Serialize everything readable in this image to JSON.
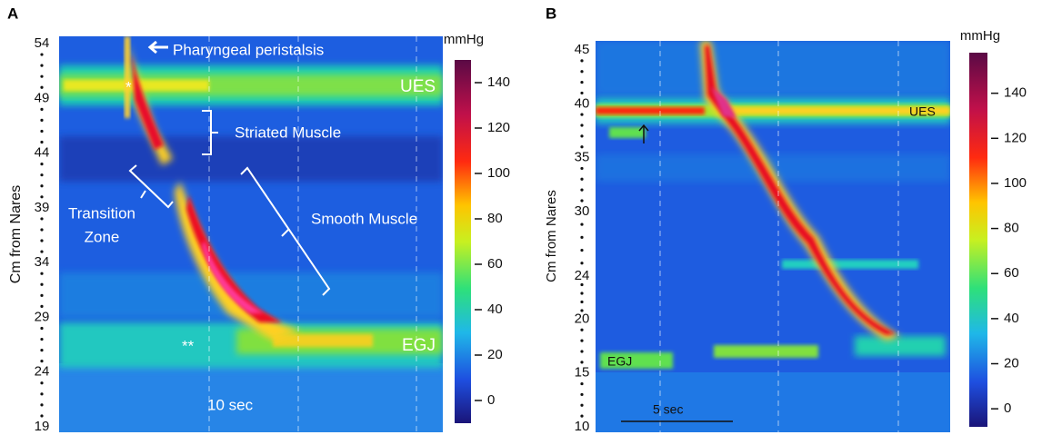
{
  "panels": [
    {
      "label": "A",
      "y_axis_title": "Cm from Nares",
      "ylim": [
        19,
        54
      ],
      "yticks": [
        19,
        24,
        29,
        34,
        39,
        44,
        49,
        54
      ],
      "colorbar": {
        "unit": "mmHg",
        "lim": [
          -10,
          150
        ],
        "ticks": [
          0,
          20,
          40,
          60,
          80,
          100,
          120,
          140
        ]
      },
      "annotations": {
        "pharyngeal": "Pharyngeal peristalsis",
        "ues": "UES",
        "striated": "Striated Muscle",
        "transition": [
          "Transition",
          "Zone"
        ],
        "smooth": "Smooth Muscle",
        "egj": "EGJ",
        "star1": "*",
        "star2": "**",
        "time": "10 sec"
      }
    },
    {
      "label": "B",
      "y_axis_title": "Cm from Nares",
      "ylim": [
        10,
        45
      ],
      "yticks": [
        10,
        15,
        20,
        24,
        30,
        35,
        40,
        45
      ],
      "colorbar": {
        "unit": "mmHg",
        "lim": [
          -8,
          158
        ],
        "ticks": [
          0,
          20,
          40,
          60,
          80,
          100,
          120,
          140
        ]
      },
      "annotations": {
        "ues": "UES",
        "egj": "EGJ",
        "time": "5 sec"
      }
    }
  ]
}
